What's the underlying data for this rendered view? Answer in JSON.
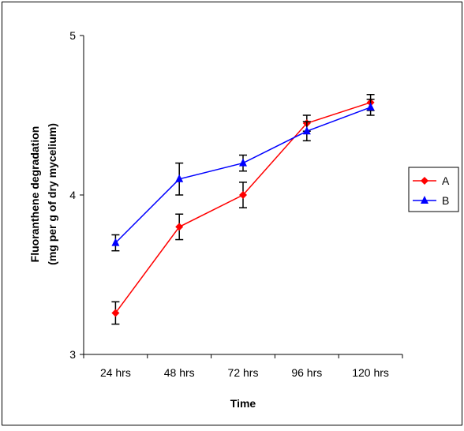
{
  "chart_data": {
    "type": "line",
    "title": "",
    "xlabel": "Time",
    "ylabel_line1": "Fluoranthene degradation",
    "ylabel_line2": "(mg per g of dry mycelium)",
    "categories": [
      "24 hrs",
      "48 hrs",
      "72 hrs",
      "96 hrs",
      "120 hrs"
    ],
    "ylim": [
      3,
      5
    ],
    "yticks": [
      "3",
      "4",
      "5"
    ],
    "grid": false,
    "legend_position": "right",
    "series": [
      {
        "name": "A",
        "color": "#ff0000",
        "marker": "diamond",
        "values": [
          3.26,
          3.8,
          4.0,
          4.45,
          4.58
        ],
        "errors": [
          0.07,
          0.08,
          0.08,
          0.05,
          0.05
        ]
      },
      {
        "name": "B",
        "color": "#0000ff",
        "marker": "triangle",
        "values": [
          3.7,
          4.1,
          4.2,
          4.4,
          4.55
        ],
        "errors": [
          0.05,
          0.1,
          0.05,
          0.06,
          0.05
        ]
      }
    ]
  }
}
